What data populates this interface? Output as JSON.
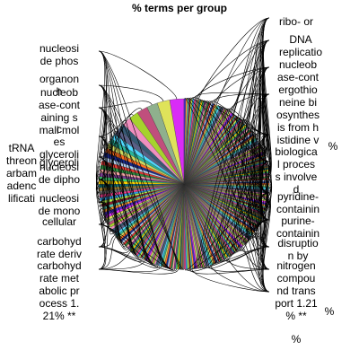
{
  "chart_data": {
    "type": "pie",
    "title": "% terms per group",
    "slice_colors": [
      "#d92cf6",
      "#dfe35a",
      "#8fb08d",
      "#c04f7d",
      "#a6d32d",
      "#f08fbf",
      "#365a74",
      "#5a5f86",
      "#4ed8ff",
      "#28b59a",
      "#c9d85f",
      "#ff6d1f",
      "#1a2a8a",
      "#b3d1f0",
      "#e23a34",
      "#2d8a3e",
      "#f6a5a5",
      "#7a3c91",
      "#3bd16f",
      "#ffd300",
      "#0e6d73",
      "#9a7a2d",
      "#6f6f6f",
      "#f33f8f",
      "#2fa0e6",
      "#b6f04a",
      "#8a1d2a",
      "#55c5b0",
      "#ff9a2e",
      "#4a2bd1"
    ],
    "slices": [
      {
        "value": 3.4
      },
      {
        "value": 3.0
      },
      {
        "value": 2.6
      },
      {
        "value": 2.6
      },
      {
        "value": 2.3
      },
      {
        "value": 2.0
      },
      {
        "value": 1.6
      },
      {
        "value": 1.5
      },
      {
        "value": 1.3
      },
      {
        "value": 1.2
      },
      {
        "value": 1.2
      },
      {
        "value": 1.1
      },
      {
        "value": 1.1
      },
      {
        "value": 1.0
      },
      {
        "value": 1.0
      },
      {
        "value": 1.0
      },
      {
        "value": 0.9
      },
      {
        "value": 0.9
      },
      {
        "value": 0.9
      },
      {
        "value": 0.9
      },
      {
        "value": 0.8
      },
      {
        "value": 0.8
      },
      {
        "value": 0.8
      },
      {
        "value": 0.8
      },
      {
        "value": 0.8
      },
      {
        "value": 0.7
      },
      {
        "value": 0.7
      },
      {
        "value": 0.7
      },
      {
        "value": 0.7
      },
      {
        "value": 0.7
      },
      {
        "value": 0.7
      },
      {
        "value": 0.6
      },
      {
        "value": 0.6
      },
      {
        "value": 0.6
      },
      {
        "value": 0.6
      },
      {
        "value": 0.6
      },
      {
        "value": 0.6
      },
      {
        "value": 0.6
      },
      {
        "value": 0.5
      },
      {
        "value": 0.5
      },
      {
        "value": 0.5
      },
      {
        "value": 0.5
      },
      {
        "value": 0.5
      },
      {
        "value": 0.5
      },
      {
        "value": 0.5
      },
      {
        "value": 0.5
      },
      {
        "value": 0.5
      },
      {
        "value": 0.5
      },
      {
        "value": 0.4
      },
      {
        "value": 0.4
      },
      {
        "value": 0.4
      },
      {
        "value": 0.4
      },
      {
        "value": 0.4
      },
      {
        "value": 0.4
      },
      {
        "value": 0.4
      },
      {
        "value": 0.4
      },
      {
        "value": 0.4
      },
      {
        "value": 0.4
      },
      {
        "value": 0.4
      },
      {
        "value": 0.4
      },
      {
        "value": 0.4
      },
      {
        "value": 0.4
      },
      {
        "value": 0.4
      },
      {
        "value": 0.4
      },
      {
        "value": 0.4
      },
      {
        "value": 0.4
      },
      {
        "value": 0.4
      },
      {
        "value": 0.4
      },
      {
        "value": 0.4
      },
      {
        "value": 0.4
      },
      {
        "value": 0.4
      },
      {
        "value": 0.4
      },
      {
        "value": 0.4
      },
      {
        "value": 0.4
      },
      {
        "value": 0.4
      },
      {
        "value": 0.4
      },
      {
        "value": 0.4
      },
      {
        "value": 0.4
      },
      {
        "value": 0.4
      },
      {
        "value": 0.4
      },
      {
        "value": 0.4
      },
      {
        "value": 0.4
      },
      {
        "value": 0.4
      },
      {
        "value": 0.4
      },
      {
        "value": 0.4
      },
      {
        "value": 0.4
      },
      {
        "value": 0.4
      },
      {
        "value": 0.4
      },
      {
        "value": 0.4
      },
      {
        "value": 0.4
      },
      {
        "value": 0.4
      },
      {
        "value": 0.4
      },
      {
        "value": 0.4
      },
      {
        "value": 0.4
      },
      {
        "value": 0.4
      },
      {
        "value": 0.4
      },
      {
        "value": 0.4
      },
      {
        "value": 0.4
      },
      {
        "value": 0.4
      },
      {
        "value": 0.4
      },
      {
        "value": 0.4
      },
      {
        "value": 0.4
      },
      {
        "value": 0.4
      },
      {
        "value": 0.4
      },
      {
        "value": 0.4
      },
      {
        "value": 0.4
      },
      {
        "value": 0.4
      },
      {
        "value": 0.4
      },
      {
        "value": 0.4
      },
      {
        "value": 0.4
      },
      {
        "value": 0.4
      },
      {
        "value": 0.4
      },
      {
        "value": 0.4
      },
      {
        "value": 0.4
      },
      {
        "value": 0.4
      },
      {
        "value": 0.4
      },
      {
        "value": 0.4
      },
      {
        "value": 0.4
      },
      {
        "value": 0.4
      },
      {
        "value": 0.4
      },
      {
        "value": 0.4
      },
      {
        "value": 0.4
      },
      {
        "value": 0.4
      },
      {
        "value": 0.4
      },
      {
        "value": 0.4
      },
      {
        "value": 0.4
      },
      {
        "value": 0.4
      },
      {
        "value": 0.4
      },
      {
        "value": 0.4
      },
      {
        "value": 0.4
      },
      {
        "value": 0.4
      },
      {
        "value": 0.4
      },
      {
        "value": 0.4
      },
      {
        "value": 0.4
      },
      {
        "value": 0.4
      },
      {
        "value": 0.4
      },
      {
        "value": 0.4
      },
      {
        "value": 0.4
      },
      {
        "value": 0.4
      },
      {
        "value": 0.4
      },
      {
        "value": 0.4
      },
      {
        "value": 0.4
      },
      {
        "value": 0.4
      },
      {
        "value": 0.4
      },
      {
        "value": 0.4
      },
      {
        "value": 0.4
      },
      {
        "value": 0.4
      },
      {
        "value": 0.4
      },
      {
        "value": 0.4
      },
      {
        "value": 0.4
      },
      {
        "value": 0.4
      },
      {
        "value": 0.4
      },
      {
        "value": 0.4
      },
      {
        "value": 0.4
      },
      {
        "value": 0.4
      },
      {
        "value": 0.4
      },
      {
        "value": 0.4
      },
      {
        "value": 0.4
      },
      {
        "value": 0.4
      },
      {
        "value": 0.4
      },
      {
        "value": 0.4
      },
      {
        "value": 0.4
      },
      {
        "value": 0.4
      },
      {
        "value": 0.4
      },
      {
        "value": 0.4
      },
      {
        "value": 0.4
      },
      {
        "value": 0.4
      },
      {
        "value": 0.4
      },
      {
        "value": 0.4
      },
      {
        "value": 0.4
      },
      {
        "value": 0.4
      },
      {
        "value": 0.4
      },
      {
        "value": 0.4
      },
      {
        "value": 0.4
      },
      {
        "value": 0.4
      },
      {
        "value": 0.4
      },
      {
        "value": 0.4
      },
      {
        "value": 0.4
      },
      {
        "value": 0.4
      },
      {
        "value": 0.4
      },
      {
        "value": 0.4
      },
      {
        "value": 0.4
      },
      {
        "value": 0.4
      },
      {
        "value": 0.4
      },
      {
        "value": 0.4
      },
      {
        "value": 0.4
      },
      {
        "value": 0.4
      },
      {
        "value": 0.4
      },
      {
        "value": 0.4
      },
      {
        "value": 0.4
      },
      {
        "value": 0.4
      },
      {
        "value": 0.4
      },
      {
        "value": 0.4
      },
      {
        "value": 0.4
      },
      {
        "value": 0.4
      },
      {
        "value": 0.4
      },
      {
        "value": 0.4
      },
      {
        "value": 0.4
      },
      {
        "value": 0.4
      },
      {
        "value": 0.4
      },
      {
        "value": 0.4
      },
      {
        "value": 0.4
      },
      {
        "value": 0.4
      },
      {
        "value": 0.4
      },
      {
        "value": 0.4
      },
      {
        "value": 0.4
      },
      {
        "value": 0.4
      },
      {
        "value": 0.4
      },
      {
        "value": 0.4
      },
      {
        "value": 0.4
      },
      {
        "value": 0.4
      },
      {
        "value": 0.4
      },
      {
        "value": 0.4
      },
      {
        "value": 0.4
      },
      {
        "value": 0.4
      },
      {
        "value": 0.4
      },
      {
        "value": 0.4
      },
      {
        "value": 0.4
      },
      {
        "value": 0.4
      },
      {
        "value": 0.4
      },
      {
        "value": 0.4
      },
      {
        "value": 0.4
      },
      {
        "value": 0.4
      },
      {
        "value": 0.4
      },
      {
        "value": 0.4
      },
      {
        "value": 0.4
      },
      {
        "value": 0.4
      },
      {
        "value": 0.4
      },
      {
        "value": 0.4
      },
      {
        "value": 0.4
      },
      {
        "value": 0.4
      },
      {
        "value": 0.4
      },
      {
        "value": 0.4
      },
      {
        "value": 0.4
      },
      {
        "value": 0.4
      },
      {
        "value": 0.4
      },
      {
        "value": 0.4
      },
      {
        "value": 0.4
      },
      {
        "value": 0.4
      },
      {
        "value": 0.4
      }
    ],
    "labels_left": [
      [
        "nucleosi",
        "de phos"
      ],
      [
        "organon",
        "h"
      ],
      [
        "nucleob",
        "ase-cont",
        "aining s",
        "mall mol"
      ],
      [
        "glyceroli"
      ],
      [
        "c"
      ],
      [
        "es"
      ],
      [
        "tRNA"
      ],
      [
        "threon"
      ],
      [
        "arbam"
      ],
      [
        "adenc"
      ],
      [
        "lificati"
      ],
      [
        "glyceroli"
      ],
      [
        "nucleosi",
        "de dipho"
      ],
      [
        "nucleosi",
        "de mono"
      ],
      [
        "cellular"
      ],
      [
        "carbohyd",
        "rate deriv"
      ],
      [
        "carbohyd",
        "rate met",
        "abolic pr",
        "ocess 1.",
        "21% **"
      ]
    ],
    "labels_right": [
      [
        "ribo- or"
      ],
      [
        "DNA",
        "replicatio"
      ],
      [
        "nucleob",
        "ase-cont"
      ],
      [
        "ergothio",
        "neine bi",
        "osynthes",
        "is from h",
        "istidine v"
      ],
      [
        "%"
      ],
      [
        "biologica",
        "l proces",
        "s involve",
        "d"
      ],
      [
        "pyridine-",
        "containin"
      ],
      [
        "purine-",
        "containin"
      ],
      [
        "disruptio",
        "n by"
      ],
      [
        "nitrogen",
        "compou",
        "nd trans",
        "port 1.21",
        "% **"
      ],
      [
        "%"
      ],
      [
        "%"
      ]
    ]
  }
}
